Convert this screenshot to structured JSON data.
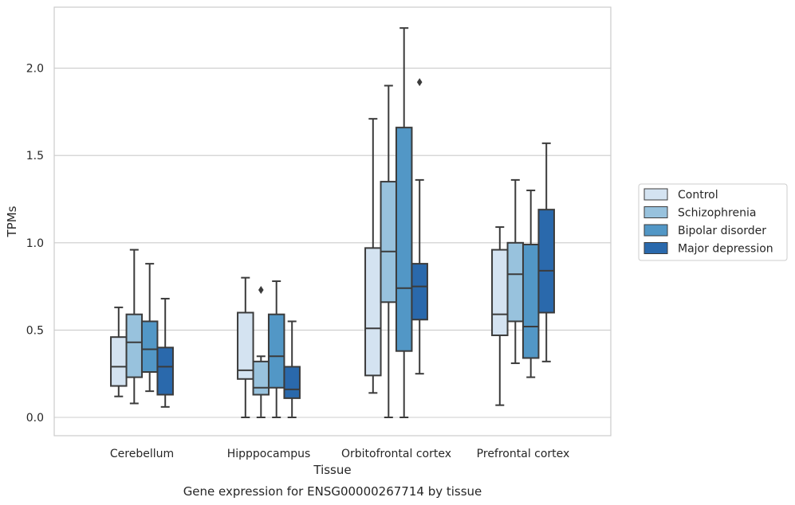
{
  "chart_data": {
    "type": "box",
    "title": "",
    "caption": "Gene expression for ENSG00000267714 by tissue",
    "xlabel": "Tissue",
    "ylabel": "TPMs",
    "ylim": [
      -0.11,
      2.35
    ],
    "yticks": [
      "0.0",
      "0.5",
      "1.0",
      "1.5",
      "2.0"
    ],
    "grid": true,
    "legend_position": "right",
    "categories": [
      "Cerebellum",
      "Hipppocampus",
      "Orbitofrontal cortex",
      "Prefrontal cortex"
    ],
    "series": [
      {
        "name": "Control",
        "color": "#d4e3f1",
        "boxes": [
          {
            "whisker_low": 0.12,
            "q1": 0.18,
            "median": 0.29,
            "q3": 0.46,
            "whisker_high": 0.63,
            "outliers": []
          },
          {
            "whisker_low": 0.0,
            "q1": 0.22,
            "median": 0.27,
            "q3": 0.6,
            "whisker_high": 0.8,
            "outliers": []
          },
          {
            "whisker_low": 0.14,
            "q1": 0.24,
            "median": 0.51,
            "q3": 0.97,
            "whisker_high": 1.71,
            "outliers": []
          },
          {
            "whisker_low": 0.07,
            "q1": 0.47,
            "median": 0.59,
            "q3": 0.96,
            "whisker_high": 1.09,
            "outliers": []
          }
        ]
      },
      {
        "name": "Schizophrenia",
        "color": "#98c2dd",
        "boxes": [
          {
            "whisker_low": 0.08,
            "q1": 0.23,
            "median": 0.43,
            "q3": 0.59,
            "whisker_high": 0.96,
            "outliers": []
          },
          {
            "whisker_low": 0.0,
            "q1": 0.13,
            "median": 0.17,
            "q3": 0.32,
            "whisker_high": 0.35,
            "outliers": [
              0.73
            ]
          },
          {
            "whisker_low": 0.0,
            "q1": 0.66,
            "median": 0.95,
            "q3": 1.35,
            "whisker_high": 1.9,
            "outliers": []
          },
          {
            "whisker_low": 0.31,
            "q1": 0.55,
            "median": 0.82,
            "q3": 1.0,
            "whisker_high": 1.36,
            "outliers": []
          }
        ]
      },
      {
        "name": "Bipolar disorder",
        "color": "#5297c6",
        "boxes": [
          {
            "whisker_low": 0.15,
            "q1": 0.26,
            "median": 0.39,
            "q3": 0.55,
            "whisker_high": 0.88,
            "outliers": []
          },
          {
            "whisker_low": 0.0,
            "q1": 0.17,
            "median": 0.35,
            "q3": 0.59,
            "whisker_high": 0.78,
            "outliers": []
          },
          {
            "whisker_low": 0.0,
            "q1": 0.38,
            "median": 0.74,
            "q3": 1.66,
            "whisker_high": 2.23,
            "outliers": []
          },
          {
            "whisker_low": 0.23,
            "q1": 0.34,
            "median": 0.52,
            "q3": 0.99,
            "whisker_high": 1.3,
            "outliers": []
          }
        ]
      },
      {
        "name": "Major depression",
        "color": "#2a69ac",
        "boxes": [
          {
            "whisker_low": 0.06,
            "q1": 0.13,
            "median": 0.29,
            "q3": 0.4,
            "whisker_high": 0.68,
            "outliers": []
          },
          {
            "whisker_low": 0.0,
            "q1": 0.11,
            "median": 0.16,
            "q3": 0.29,
            "whisker_high": 0.55,
            "outliers": []
          },
          {
            "whisker_low": 0.25,
            "q1": 0.56,
            "median": 0.75,
            "q3": 0.88,
            "whisker_high": 1.36,
            "outliers": [
              1.92
            ]
          },
          {
            "whisker_low": 0.32,
            "q1": 0.6,
            "median": 0.84,
            "q3": 1.19,
            "whisker_high": 1.57,
            "outliers": []
          }
        ]
      }
    ]
  }
}
